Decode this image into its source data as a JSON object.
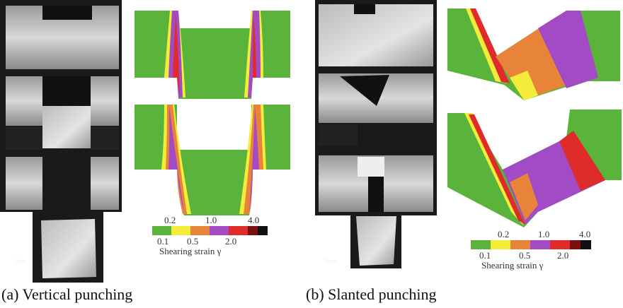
{
  "panels": [
    {
      "caption": "(a) Vertical punching",
      "scale_label": "20μm",
      "legend": {
        "ticks_top": [
          "0.2",
          "1.0",
          "4.0"
        ],
        "ticks_bottom": [
          "0.1",
          "0.5",
          "2.0"
        ],
        "title": "Shearing strain γ"
      }
    },
    {
      "caption": "(b) Slanted punching",
      "scale_label": "20μm",
      "legend": {
        "ticks_top": [
          "0.2",
          "1.0",
          "4.0"
        ],
        "ticks_bottom": [
          "0.1",
          "0.5",
          "2.0"
        ],
        "title": "Shearing strain γ"
      }
    }
  ]
}
